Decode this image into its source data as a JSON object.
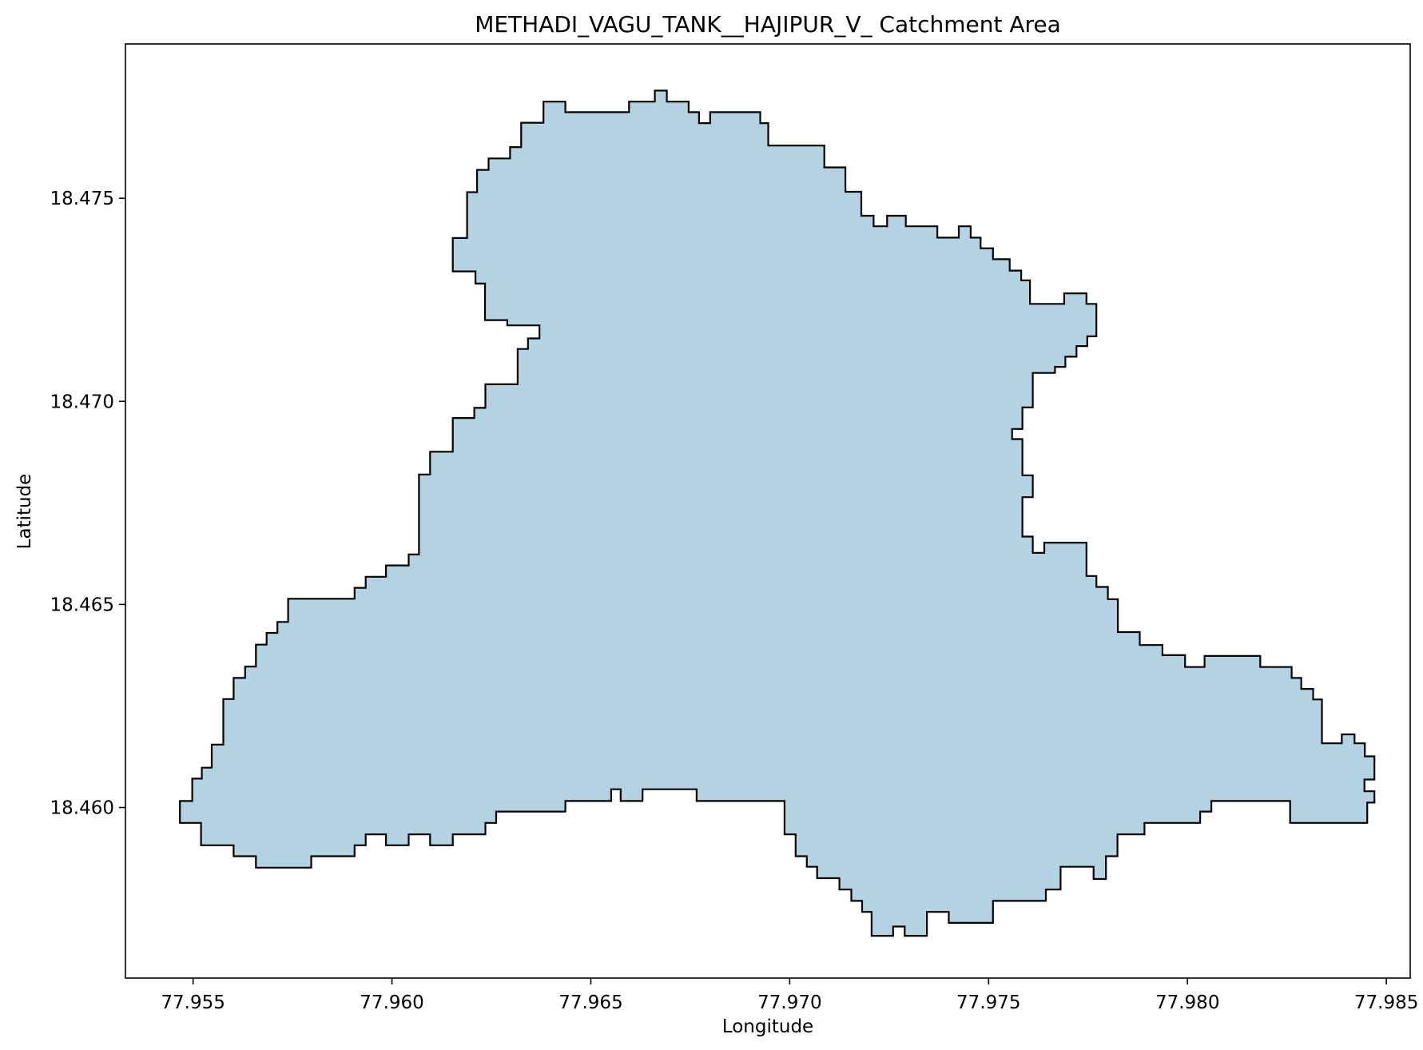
{
  "chart_data": {
    "type": "map",
    "title": "METHADI_VAGU_TANK__HAJIPUR_V_ Catchment Area",
    "xlabel": "Longitude",
    "ylabel": "Latitude",
    "xlim": [
      77.9533,
      77.9856
    ],
    "ylim": [
      18.4558,
      18.4788
    ],
    "xticks": [
      {
        "value": 77.955,
        "label": "77.955"
      },
      {
        "value": 77.96,
        "label": "77.960"
      },
      {
        "value": 77.965,
        "label": "77.965"
      },
      {
        "value": 77.97,
        "label": "77.970"
      },
      {
        "value": 77.975,
        "label": "77.975"
      },
      {
        "value": 77.98,
        "label": "77.980"
      },
      {
        "value": 77.985,
        "label": "77.985"
      }
    ],
    "yticks": [
      {
        "value": 18.46,
        "label": "18.460"
      },
      {
        "value": 18.465,
        "label": "18.465"
      },
      {
        "value": 18.47,
        "label": "18.470"
      },
      {
        "value": 18.475,
        "label": "18.475"
      }
    ],
    "fill_color": "#b3d3e3",
    "edge_color": "#000000",
    "grid": false,
    "boundary": [
      [
        77.96381,
        18.47738
      ],
      [
        77.96436,
        18.47738
      ],
      [
        77.96436,
        18.47712
      ],
      [
        77.96596,
        18.47712
      ],
      [
        77.96596,
        18.47738
      ],
      [
        77.96661,
        18.47738
      ],
      [
        77.96661,
        18.47765
      ],
      [
        77.96691,
        18.47765
      ],
      [
        77.96691,
        18.47738
      ],
      [
        77.96746,
        18.47738
      ],
      [
        77.96746,
        18.47712
      ],
      [
        77.96772,
        18.47712
      ],
      [
        77.96772,
        18.47685
      ],
      [
        77.968,
        18.47685
      ],
      [
        77.968,
        18.47712
      ],
      [
        77.96926,
        18.47712
      ],
      [
        77.96926,
        18.47685
      ],
      [
        77.96946,
        18.47685
      ],
      [
        77.96946,
        18.4763
      ],
      [
        77.97087,
        18.4763
      ],
      [
        77.97087,
        18.47576
      ],
      [
        77.9714,
        18.47576
      ],
      [
        77.9714,
        18.47516
      ],
      [
        77.9718,
        18.47516
      ],
      [
        77.9718,
        18.47457
      ],
      [
        77.97211,
        18.47457
      ],
      [
        77.97211,
        18.47431
      ],
      [
        77.97245,
        18.47431
      ],
      [
        77.97245,
        18.47457
      ],
      [
        77.97292,
        18.47457
      ],
      [
        77.97292,
        18.47431
      ],
      [
        77.97371,
        18.47431
      ],
      [
        77.97371,
        18.47403
      ],
      [
        77.97425,
        18.47403
      ],
      [
        77.97425,
        18.47431
      ],
      [
        77.97455,
        18.47431
      ],
      [
        77.97455,
        18.47403
      ],
      [
        77.9748,
        18.47403
      ],
      [
        77.9748,
        18.47377
      ],
      [
        77.97511,
        18.47377
      ],
      [
        77.97511,
        18.4735
      ],
      [
        77.97553,
        18.4735
      ],
      [
        77.97553,
        18.47322
      ],
      [
        77.97582,
        18.47322
      ],
      [
        77.97582,
        18.47298
      ],
      [
        77.97604,
        18.47298
      ],
      [
        77.97604,
        18.4724
      ],
      [
        77.9769,
        18.4724
      ],
      [
        77.9769,
        18.47266
      ],
      [
        77.97746,
        18.47266
      ],
      [
        77.97746,
        18.4724
      ],
      [
        77.97771,
        18.4724
      ],
      [
        77.97771,
        18.4716
      ],
      [
        77.97748,
        18.4716
      ],
      [
        77.97748,
        18.47136
      ],
      [
        77.97721,
        18.47136
      ],
      [
        77.97721,
        18.4711
      ],
      [
        77.97693,
        18.4711
      ],
      [
        77.97693,
        18.47085
      ],
      [
        77.97667,
        18.47085
      ],
      [
        77.97667,
        18.4707
      ],
      [
        77.97611,
        18.4707
      ],
      [
        77.97611,
        18.46985
      ],
      [
        77.97585,
        18.46985
      ],
      [
        77.97585,
        18.46932
      ],
      [
        77.97559,
        18.46932
      ],
      [
        77.97559,
        18.46907
      ],
      [
        77.97585,
        18.46907
      ],
      [
        77.97585,
        18.46818
      ],
      [
        77.97611,
        18.46818
      ],
      [
        77.97611,
        18.46764
      ],
      [
        77.97585,
        18.46764
      ],
      [
        77.97585,
        18.46667
      ],
      [
        77.97611,
        18.46667
      ],
      [
        77.97611,
        18.46627
      ],
      [
        77.9764,
        18.46627
      ],
      [
        77.9764,
        18.46652
      ],
      [
        77.97746,
        18.46652
      ],
      [
        77.97746,
        18.4657
      ],
      [
        77.97771,
        18.4657
      ],
      [
        77.97771,
        18.46543
      ],
      [
        77.978,
        18.46543
      ],
      [
        77.978,
        18.46513
      ],
      [
        77.97825,
        18.46513
      ],
      [
        77.97825,
        18.46432
      ],
      [
        77.9788,
        18.46432
      ],
      [
        77.9788,
        18.464
      ],
      [
        77.97937,
        18.464
      ],
      [
        77.97937,
        18.46375
      ],
      [
        77.97994,
        18.46375
      ],
      [
        77.97994,
        18.46346
      ],
      [
        77.98043,
        18.46346
      ],
      [
        77.98043,
        18.46373
      ],
      [
        77.98183,
        18.46373
      ],
      [
        77.98183,
        18.46346
      ],
      [
        77.98262,
        18.46346
      ],
      [
        77.98262,
        18.46319
      ],
      [
        77.98286,
        18.46319
      ],
      [
        77.98286,
        18.46292
      ],
      [
        77.98316,
        18.46292
      ],
      [
        77.98316,
        18.46266
      ],
      [
        77.98338,
        18.46266
      ],
      [
        77.98338,
        18.46158
      ],
      [
        77.98388,
        18.46158
      ],
      [
        77.98388,
        18.4618
      ],
      [
        77.9842,
        18.4618
      ],
      [
        77.9842,
        18.46158
      ],
      [
        77.98446,
        18.46158
      ],
      [
        77.98446,
        18.46126
      ],
      [
        77.9847,
        18.46126
      ],
      [
        77.9847,
        18.46069
      ],
      [
        77.98445,
        18.46069
      ],
      [
        77.98445,
        18.4604
      ],
      [
        77.9847,
        18.4604
      ],
      [
        77.9847,
        18.46012
      ],
      [
        77.98452,
        18.46012
      ],
      [
        77.98452,
        18.45962
      ],
      [
        77.98258,
        18.45962
      ],
      [
        77.98258,
        18.46016
      ],
      [
        77.9806,
        18.46016
      ],
      [
        77.9806,
        18.4599
      ],
      [
        77.98032,
        18.4599
      ],
      [
        77.98032,
        18.45962
      ],
      [
        77.97892,
        18.45962
      ],
      [
        77.97892,
        18.45934
      ],
      [
        77.97824,
        18.45934
      ],
      [
        77.97824,
        18.4588
      ],
      [
        77.97795,
        18.4588
      ],
      [
        77.97795,
        18.45824
      ],
      [
        77.97764,
        18.45824
      ],
      [
        77.97764,
        18.45854
      ],
      [
        77.97681,
        18.45854
      ],
      [
        77.97681,
        18.45798
      ],
      [
        77.97644,
        18.45798
      ],
      [
        77.97644,
        18.4577
      ],
      [
        77.97511,
        18.4577
      ],
      [
        77.97511,
        18.45716
      ],
      [
        77.974,
        18.45716
      ],
      [
        77.974,
        18.45743
      ],
      [
        77.97345,
        18.45743
      ],
      [
        77.97345,
        18.45684
      ],
      [
        77.97289,
        18.45684
      ],
      [
        77.97289,
        18.45707
      ],
      [
        77.9726,
        18.45707
      ],
      [
        77.9726,
        18.45684
      ],
      [
        77.97206,
        18.45684
      ],
      [
        77.97206,
        18.45743
      ],
      [
        77.97182,
        18.45743
      ],
      [
        77.97182,
        18.4577
      ],
      [
        77.97155,
        18.4577
      ],
      [
        77.97155,
        18.45798
      ],
      [
        77.97125,
        18.45798
      ],
      [
        77.97125,
        18.45826
      ],
      [
        77.97069,
        18.45826
      ],
      [
        77.97069,
        18.45854
      ],
      [
        77.97043,
        18.45854
      ],
      [
        77.97043,
        18.4588
      ],
      [
        77.97015,
        18.4588
      ],
      [
        77.97015,
        18.45934
      ],
      [
        77.96987,
        18.45934
      ],
      [
        77.96987,
        18.46016
      ],
      [
        77.96766,
        18.46016
      ],
      [
        77.96766,
        18.46045
      ],
      [
        77.9663,
        18.46045
      ],
      [
        77.9663,
        18.46016
      ],
      [
        77.96575,
        18.46016
      ],
      [
        77.96575,
        18.46045
      ],
      [
        77.96551,
        18.46045
      ],
      [
        77.96551,
        18.46016
      ],
      [
        77.96436,
        18.46016
      ],
      [
        77.96436,
        18.4599
      ],
      [
        77.96262,
        18.4599
      ],
      [
        77.96262,
        18.45962
      ],
      [
        77.96235,
        18.45962
      ],
      [
        77.96235,
        18.45934
      ],
      [
        77.96153,
        18.45934
      ],
      [
        77.96153,
        18.45907
      ],
      [
        77.96096,
        18.45907
      ],
      [
        77.96096,
        18.45934
      ],
      [
        77.96042,
        18.45934
      ],
      [
        77.96042,
        18.45907
      ],
      [
        77.95985,
        18.45907
      ],
      [
        77.95985,
        18.45934
      ],
      [
        77.95934,
        18.45934
      ],
      [
        77.95934,
        18.45907
      ],
      [
        77.95906,
        18.45907
      ],
      [
        77.95906,
        18.4588
      ],
      [
        77.95797,
        18.4588
      ],
      [
        77.95797,
        18.45852
      ],
      [
        77.95658,
        18.45852
      ],
      [
        77.95658,
        18.4588
      ],
      [
        77.95602,
        18.4588
      ],
      [
        77.95602,
        18.45907
      ],
      [
        77.9552,
        18.45907
      ],
      [
        77.9552,
        18.45962
      ],
      [
        77.95467,
        18.45962
      ],
      [
        77.95467,
        18.46016
      ],
      [
        77.95498,
        18.46016
      ],
      [
        77.95498,
        18.46071
      ],
      [
        77.95522,
        18.46071
      ],
      [
        77.95522,
        18.46098
      ],
      [
        77.95547,
        18.46098
      ],
      [
        77.95547,
        18.46155
      ],
      [
        77.95576,
        18.46155
      ],
      [
        77.95576,
        18.46267
      ],
      [
        77.95602,
        18.46267
      ],
      [
        77.95602,
        18.46319
      ],
      [
        77.95631,
        18.46319
      ],
      [
        77.95631,
        18.46347
      ],
      [
        77.95658,
        18.46347
      ],
      [
        77.95658,
        18.46401
      ],
      [
        77.95685,
        18.46401
      ],
      [
        77.95685,
        18.4643
      ],
      [
        77.95712,
        18.4643
      ],
      [
        77.95712,
        18.46457
      ],
      [
        77.95739,
        18.46457
      ],
      [
        77.95739,
        18.46514
      ],
      [
        77.95906,
        18.46514
      ],
      [
        77.95906,
        18.46541
      ],
      [
        77.95934,
        18.46541
      ],
      [
        77.95934,
        18.46568
      ],
      [
        77.95985,
        18.46568
      ],
      [
        77.95985,
        18.46596
      ],
      [
        77.96042,
        18.46596
      ],
      [
        77.96042,
        18.46623
      ],
      [
        77.96068,
        18.46623
      ],
      [
        77.96068,
        18.4682
      ],
      [
        77.96096,
        18.4682
      ],
      [
        77.96096,
        18.46876
      ],
      [
        77.96153,
        18.46876
      ],
      [
        77.96153,
        18.46959
      ],
      [
        77.96207,
        18.46959
      ],
      [
        77.96207,
        18.46984
      ],
      [
        77.96235,
        18.46984
      ],
      [
        77.96235,
        18.47042
      ],
      [
        77.96316,
        18.47042
      ],
      [
        77.96316,
        18.47129
      ],
      [
        77.96342,
        18.47129
      ],
      [
        77.96342,
        18.47155
      ],
      [
        77.96371,
        18.47155
      ],
      [
        77.96371,
        18.47187
      ],
      [
        77.9629,
        18.47187
      ],
      [
        77.9629,
        18.472
      ],
      [
        77.96234,
        18.472
      ],
      [
        77.96234,
        18.4729
      ],
      [
        77.9621,
        18.4729
      ],
      [
        77.9621,
        18.4732
      ],
      [
        77.96153,
        18.4732
      ],
      [
        77.96153,
        18.47402
      ],
      [
        77.96189,
        18.47402
      ],
      [
        77.96189,
        18.47515
      ],
      [
        77.96214,
        18.47515
      ],
      [
        77.96214,
        18.4757
      ],
      [
        77.96243,
        18.4757
      ],
      [
        77.96243,
        18.47598
      ],
      [
        77.96297,
        18.47598
      ],
      [
        77.96297,
        18.47626
      ],
      [
        77.96325,
        18.47626
      ],
      [
        77.96325,
        18.47686
      ],
      [
        77.96381,
        18.47686
      ]
    ]
  }
}
